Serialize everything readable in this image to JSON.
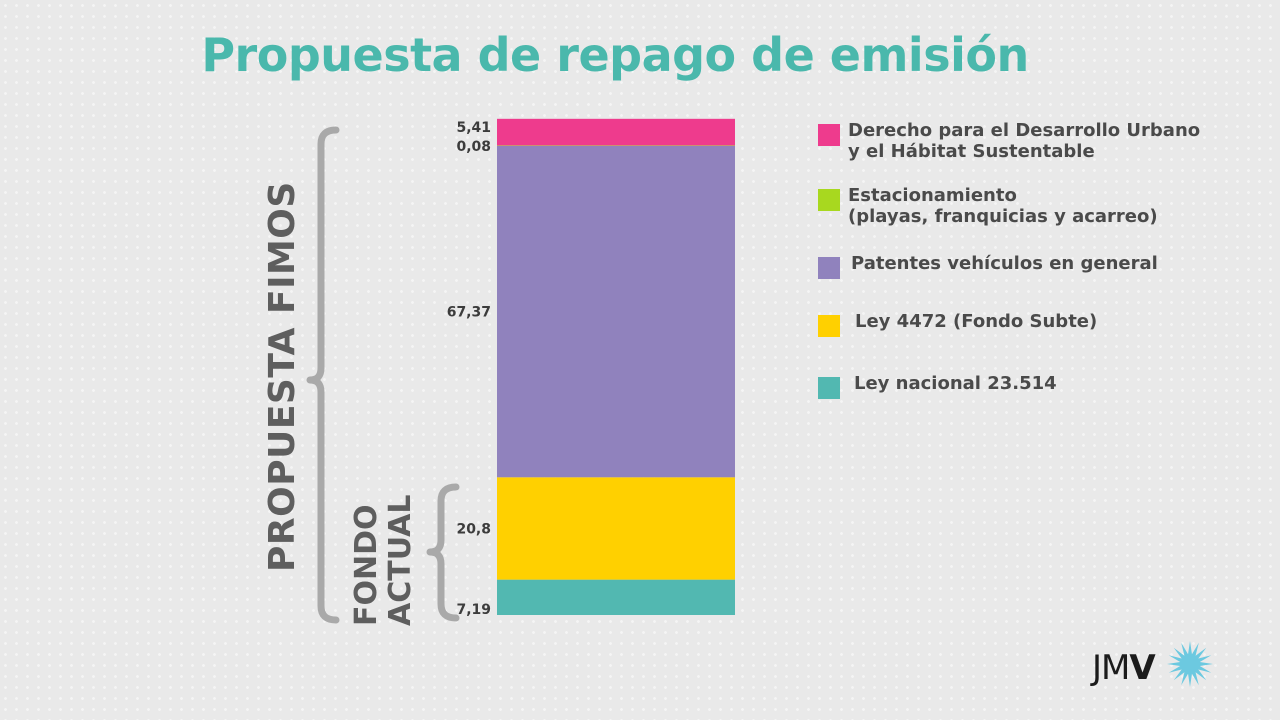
{
  "title": "Propuesta de repago de emisión",
  "colors": {
    "title": "#4ab8ac",
    "derecho": "#ee3b8d",
    "estacionamiento": "#a8d81f",
    "patentes": "#9082bd",
    "ley4472": "#ffd000",
    "ley23514": "#52b8b1",
    "brace": "#a9a9a9",
    "value_label": "#3c3c3c",
    "brand_sun": "#6cc9e0"
  },
  "brackets": {
    "propuesta": "PROPUESTA FIMOS",
    "fondo_line1": "FONDO",
    "fondo_line2": "ACTUAL"
  },
  "legend": [
    {
      "label": "Derecho para el Desarrollo Urbano\ny el Hábitat Sustentable",
      "color_key": "derecho"
    },
    {
      "label": "Estacionamiento\n(playas, franquicias y acarreo)",
      "color_key": "estacionamiento"
    },
    {
      "label": "Patentes vehículos en general",
      "color_key": "patentes"
    },
    {
      "label": "Ley 4472 (Fondo Subte)",
      "color_key": "ley4472"
    },
    {
      "label": "Ley nacional 23.514",
      "color_key": "ley23514"
    }
  ],
  "brand": {
    "text_light": "JM",
    "text_bold": "V"
  },
  "chart_data": {
    "type": "bar",
    "stacked": true,
    "categories": [
      ""
    ],
    "series": [
      {
        "name": "Ley nacional 23.514",
        "values": [
          7.19
        ],
        "value_label": "7,19",
        "color_key": "ley23514"
      },
      {
        "name": "Ley 4472 (Fondo Subte)",
        "values": [
          20.8
        ],
        "value_label": "20,8",
        "color_key": "ley4472"
      },
      {
        "name": "Patentes vehículos en general",
        "values": [
          67.37
        ],
        "value_label": "67,37",
        "color_key": "patentes"
      },
      {
        "name": "Estacionamiento (playas, franquicias y acarreo)",
        "values": [
          0.08
        ],
        "value_label": "0,08",
        "color_key": "estacionamiento"
      },
      {
        "name": "Derecho para el Desarrollo Urbano y el Hábitat Sustentable",
        "values": [
          5.41
        ],
        "value_label": "5,41",
        "color_key": "derecho"
      }
    ],
    "legend_position": "right",
    "grid": false
  }
}
